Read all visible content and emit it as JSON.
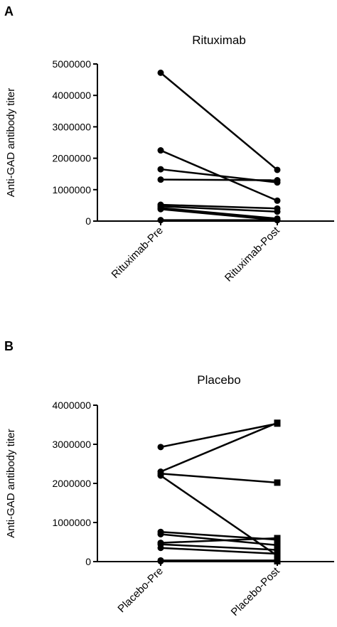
{
  "chart_data": [
    {
      "panel": "A",
      "type": "line",
      "title": "Rituximab",
      "ylabel": "Anti-GAD antibody titer",
      "xlabel": "",
      "categories": [
        "Rituximab-Pre",
        "Rituximab-Post"
      ],
      "ylim": [
        0,
        5000000
      ],
      "yticks": [
        "0",
        "1000000",
        "2000000",
        "3000000",
        "4000000",
        "5000000"
      ],
      "grid": false,
      "pre_marker": "circle",
      "post_marker": "circle",
      "pairs": [
        [
          4720000,
          1630000
        ],
        [
          2250000,
          650000
        ],
        [
          1650000,
          1230000
        ],
        [
          1320000,
          1300000
        ],
        [
          520000,
          400000
        ],
        [
          470000,
          300000
        ],
        [
          420000,
          80000
        ],
        [
          380000,
          30000
        ],
        [
          30000,
          30000
        ]
      ]
    },
    {
      "panel": "B",
      "type": "line",
      "title": "Placebo",
      "ylabel": "Anti-GAD antibody titer",
      "xlabel": "",
      "categories": [
        "Placebo-Pre",
        "Placebo-Post"
      ],
      "ylim": [
        0,
        4000000
      ],
      "yticks": [
        "0",
        "1000000",
        "2000000",
        "3000000",
        "4000000"
      ],
      "grid": false,
      "pre_marker": "circle",
      "post_marker": "square",
      "pairs": [
        [
          2930000,
          3530000
        ],
        [
          2300000,
          3550000
        ],
        [
          2250000,
          2020000
        ],
        [
          2200000,
          150000
        ],
        [
          760000,
          560000
        ],
        [
          700000,
          420000
        ],
        [
          480000,
          600000
        ],
        [
          440000,
          300000
        ],
        [
          350000,
          200000
        ],
        [
          30000,
          30000
        ],
        [
          10000,
          10000
        ]
      ]
    }
  ]
}
